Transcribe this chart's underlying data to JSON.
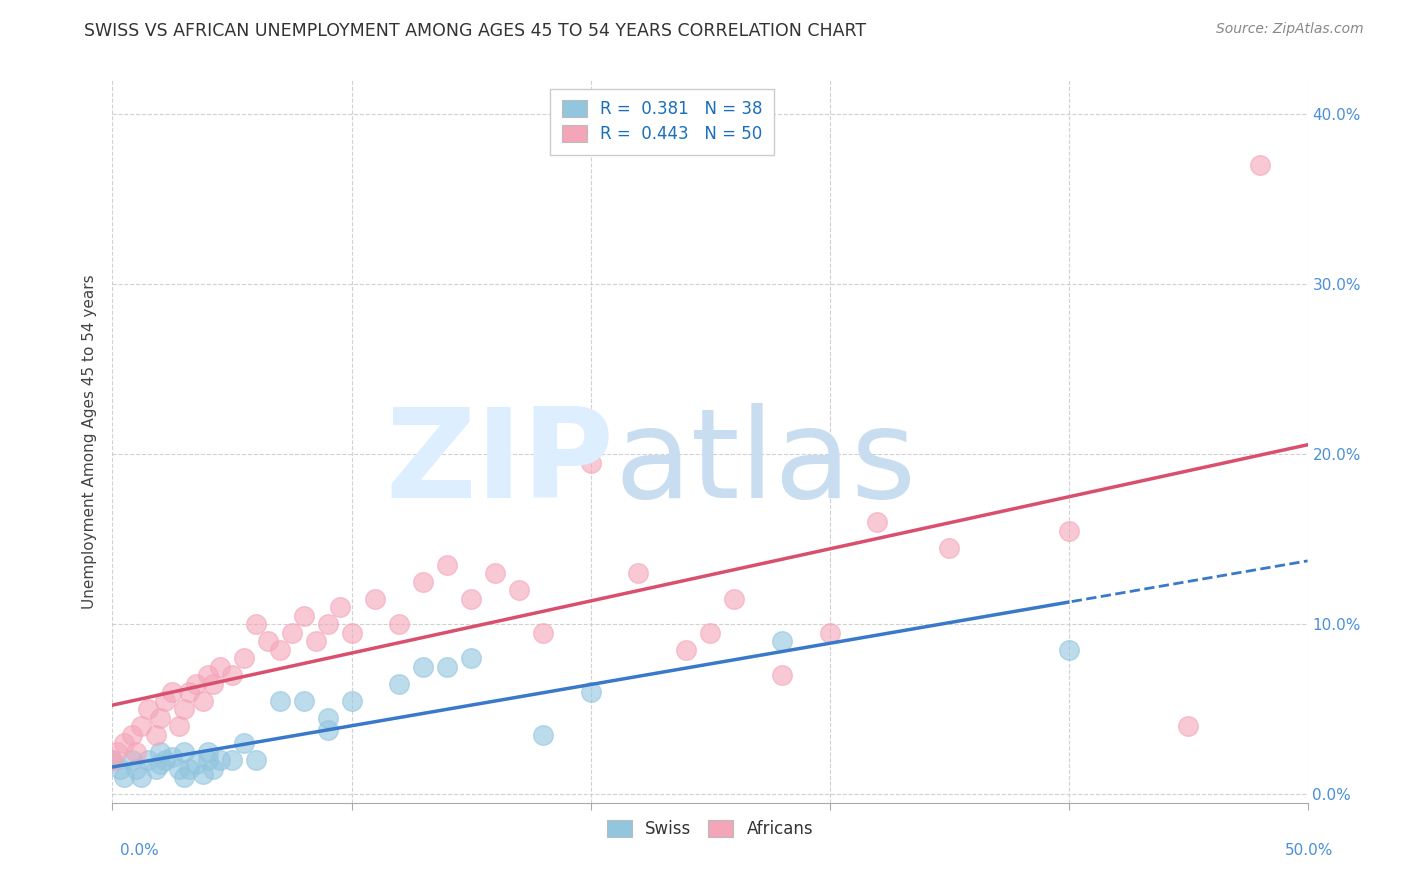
{
  "title": "SWISS VS AFRICAN UNEMPLOYMENT AMONG AGES 45 TO 54 YEARS CORRELATION CHART",
  "source": "Source: ZipAtlas.com",
  "ylabel": "Unemployment Among Ages 45 to 54 years",
  "xlim": [
    0.0,
    0.5
  ],
  "ylim": [
    -0.005,
    0.42
  ],
  "swiss_color": "#92c5de",
  "african_color": "#f4a5b8",
  "swiss_R": 0.381,
  "swiss_N": 38,
  "african_R": 0.443,
  "african_N": 50,
  "swiss_trend_color": "#3a78c9",
  "african_trend_color": "#d94f6e",
  "swiss_x": [
    0.0,
    0.003,
    0.005,
    0.008,
    0.01,
    0.012,
    0.015,
    0.018,
    0.02,
    0.02,
    0.022,
    0.025,
    0.028,
    0.03,
    0.03,
    0.032,
    0.035,
    0.038,
    0.04,
    0.04,
    0.042,
    0.045,
    0.05,
    0.055,
    0.06,
    0.07,
    0.08,
    0.09,
    0.09,
    0.1,
    0.12,
    0.13,
    0.14,
    0.15,
    0.18,
    0.2,
    0.28,
    0.4
  ],
  "swiss_y": [
    0.02,
    0.015,
    0.01,
    0.02,
    0.015,
    0.01,
    0.02,
    0.015,
    0.025,
    0.018,
    0.02,
    0.022,
    0.015,
    0.01,
    0.025,
    0.015,
    0.018,
    0.012,
    0.02,
    0.025,
    0.015,
    0.02,
    0.02,
    0.03,
    0.02,
    0.055,
    0.055,
    0.045,
    0.038,
    0.055,
    0.065,
    0.075,
    0.075,
    0.08,
    0.035,
    0.06,
    0.09,
    0.085
  ],
  "african_x": [
    0.0,
    0.002,
    0.005,
    0.008,
    0.01,
    0.012,
    0.015,
    0.018,
    0.02,
    0.022,
    0.025,
    0.028,
    0.03,
    0.032,
    0.035,
    0.038,
    0.04,
    0.042,
    0.045,
    0.05,
    0.055,
    0.06,
    0.065,
    0.07,
    0.075,
    0.08,
    0.085,
    0.09,
    0.095,
    0.1,
    0.11,
    0.12,
    0.13,
    0.14,
    0.15,
    0.16,
    0.17,
    0.18,
    0.2,
    0.22,
    0.24,
    0.25,
    0.26,
    0.28,
    0.3,
    0.32,
    0.35,
    0.4,
    0.45,
    0.48
  ],
  "african_y": [
    0.02,
    0.025,
    0.03,
    0.035,
    0.025,
    0.04,
    0.05,
    0.035,
    0.045,
    0.055,
    0.06,
    0.04,
    0.05,
    0.06,
    0.065,
    0.055,
    0.07,
    0.065,
    0.075,
    0.07,
    0.08,
    0.1,
    0.09,
    0.085,
    0.095,
    0.105,
    0.09,
    0.1,
    0.11,
    0.095,
    0.115,
    0.1,
    0.125,
    0.135,
    0.115,
    0.13,
    0.12,
    0.095,
    0.195,
    0.13,
    0.085,
    0.095,
    0.115,
    0.07,
    0.095,
    0.16,
    0.145,
    0.155,
    0.04,
    0.37
  ]
}
